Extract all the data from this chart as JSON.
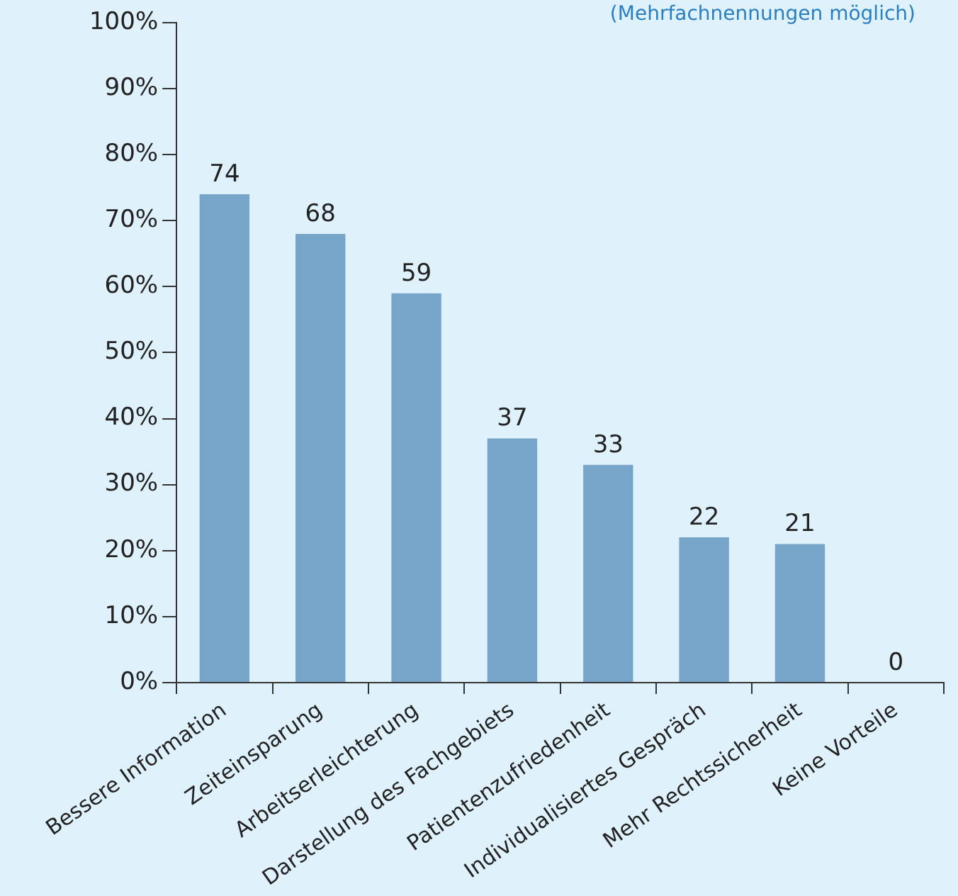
{
  "chart_data": {
    "type": "bar",
    "categories": [
      "Bessere Information",
      "Zeiteinsparung",
      "Arbeitserleichterung",
      "Darstellung des Fachgebiets",
      "Patientenzufriedenheit",
      "Individualisiertes Gespräch",
      "Mehr Rechtssicherheit",
      "Keine Vorteile"
    ],
    "values": [
      74,
      68,
      59,
      37,
      33,
      22,
      21,
      0
    ],
    "color": "#76a5c9",
    "ylim": [
      0,
      100
    ],
    "yticks": [
      {
        "value": 0,
        "label": "0%"
      },
      {
        "value": 10,
        "label": "10%"
      },
      {
        "value": 20,
        "label": "20%"
      },
      {
        "value": 30,
        "label": "30%"
      },
      {
        "value": 40,
        "label": "40%"
      },
      {
        "value": 50,
        "label": "50%"
      },
      {
        "value": 60,
        "label": "60%"
      },
      {
        "value": 70,
        "label": "70%"
      },
      {
        "value": 80,
        "label": "80%"
      },
      {
        "value": 90,
        "label": "90%"
      },
      {
        "value": 100,
        "label": "100%"
      }
    ],
    "data_labels": true,
    "grid": false,
    "legend": false,
    "annotations": [
      "(Mehrfachnennungen möglich)"
    ]
  }
}
